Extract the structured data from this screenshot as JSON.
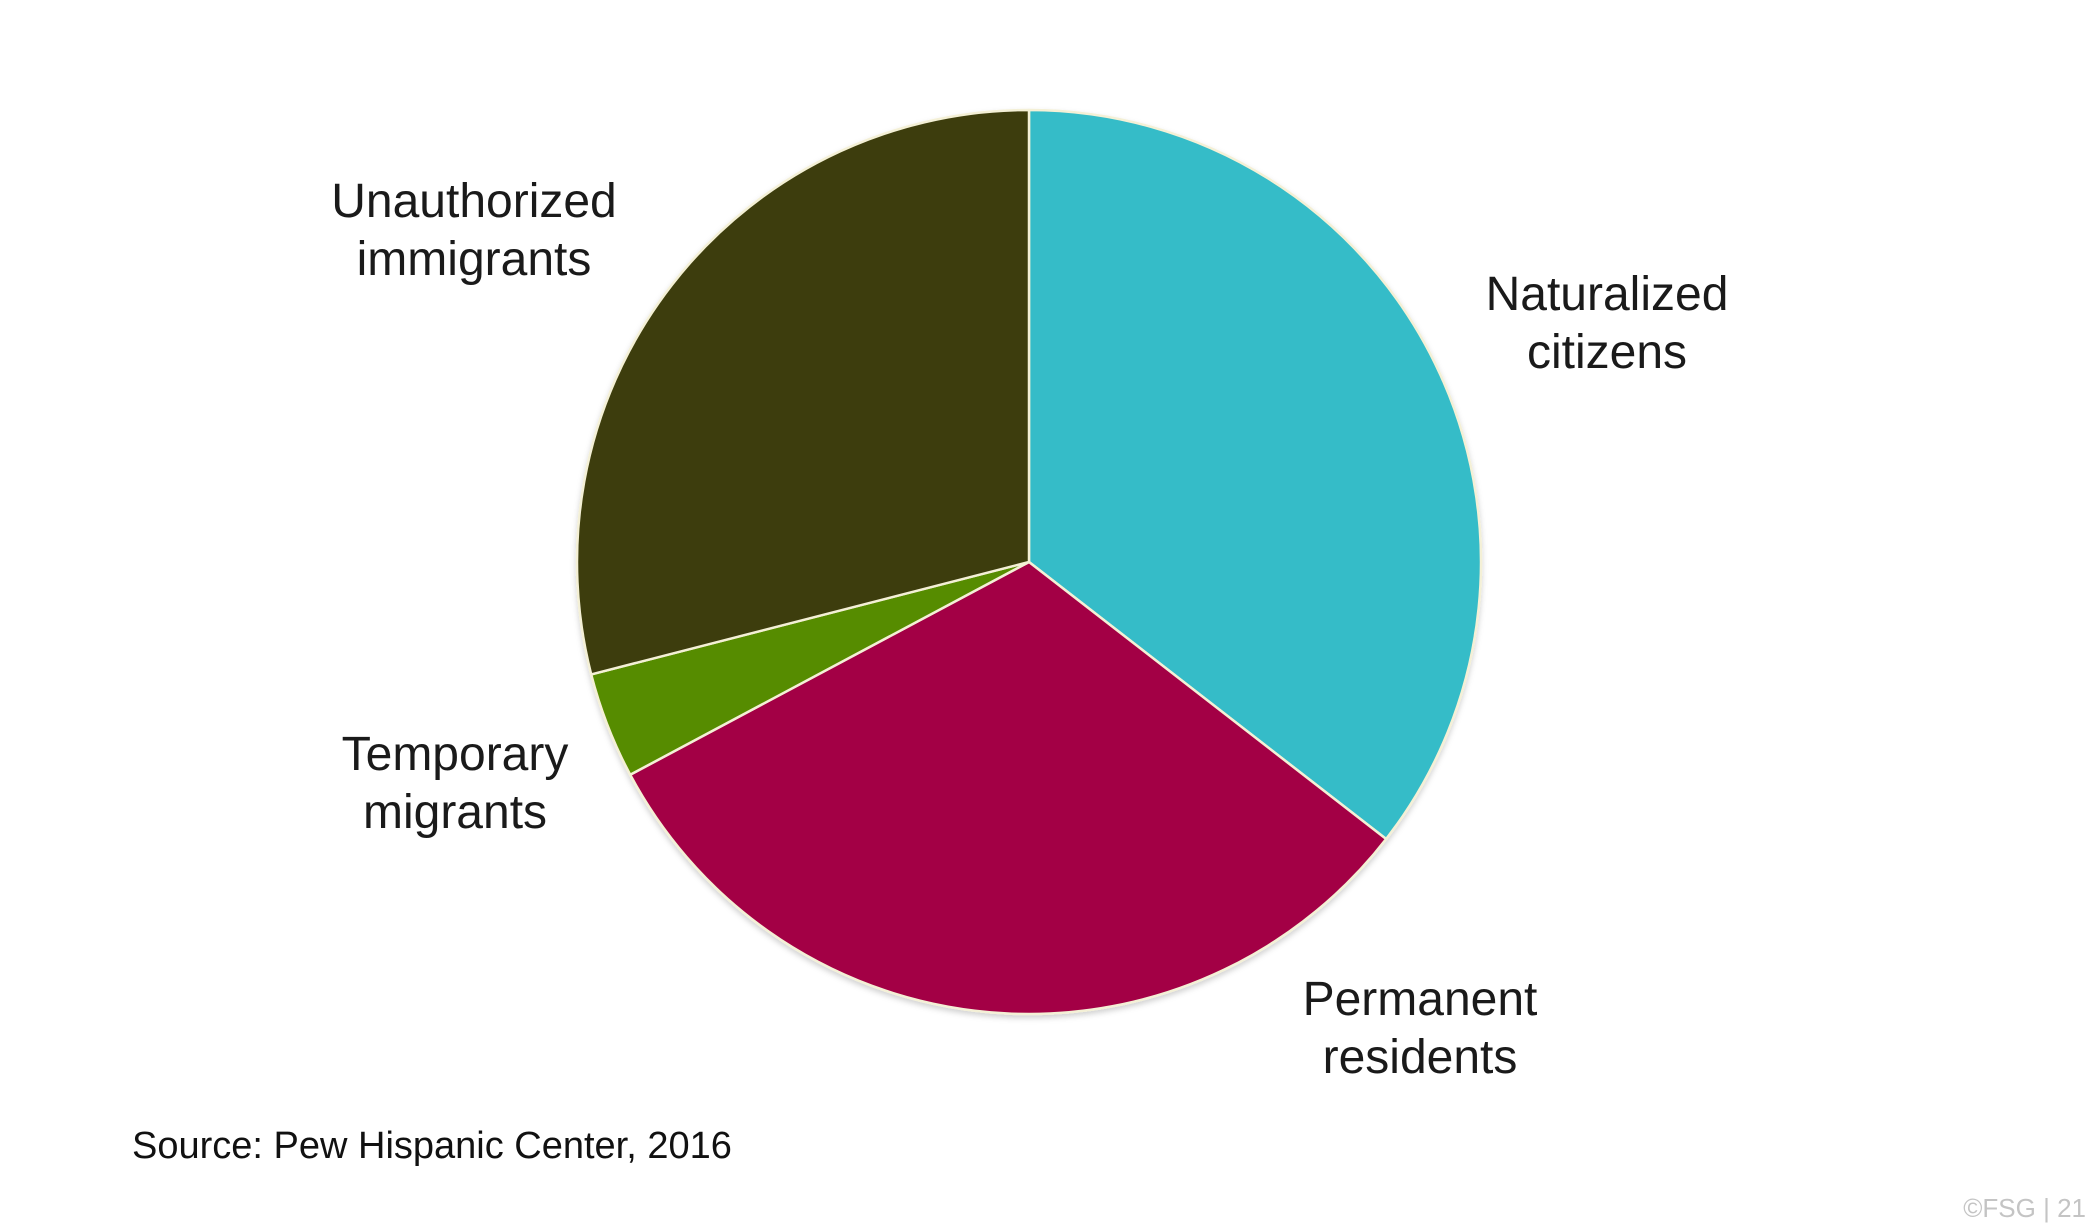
{
  "chart_data": {
    "type": "pie",
    "start": "12 o'clock, clockwise",
    "slices": [
      {
        "label": "Naturalized citizens",
        "label_lines": [
          "Naturalized",
          "citizens"
        ],
        "value": 35.5,
        "color": "#35bcc8"
      },
      {
        "label": "Permanent residents",
        "label_lines": [
          "Permanent",
          "residents"
        ],
        "value": 31.7,
        "color": "#a30044"
      },
      {
        "label": "Temporary migrants",
        "label_lines": [
          "Temporary",
          "migrants"
        ],
        "value": 3.8,
        "color": "#578c00"
      },
      {
        "label": "Unauthorized immigrants",
        "label_lines": [
          "Unauthorized",
          "immigrants"
        ],
        "value": 29.0,
        "color": "#3d3e0d"
      }
    ]
  },
  "source_note": "Source: Pew Hispanic Center, 2016",
  "footer_mark": "©FSG  |  21"
}
